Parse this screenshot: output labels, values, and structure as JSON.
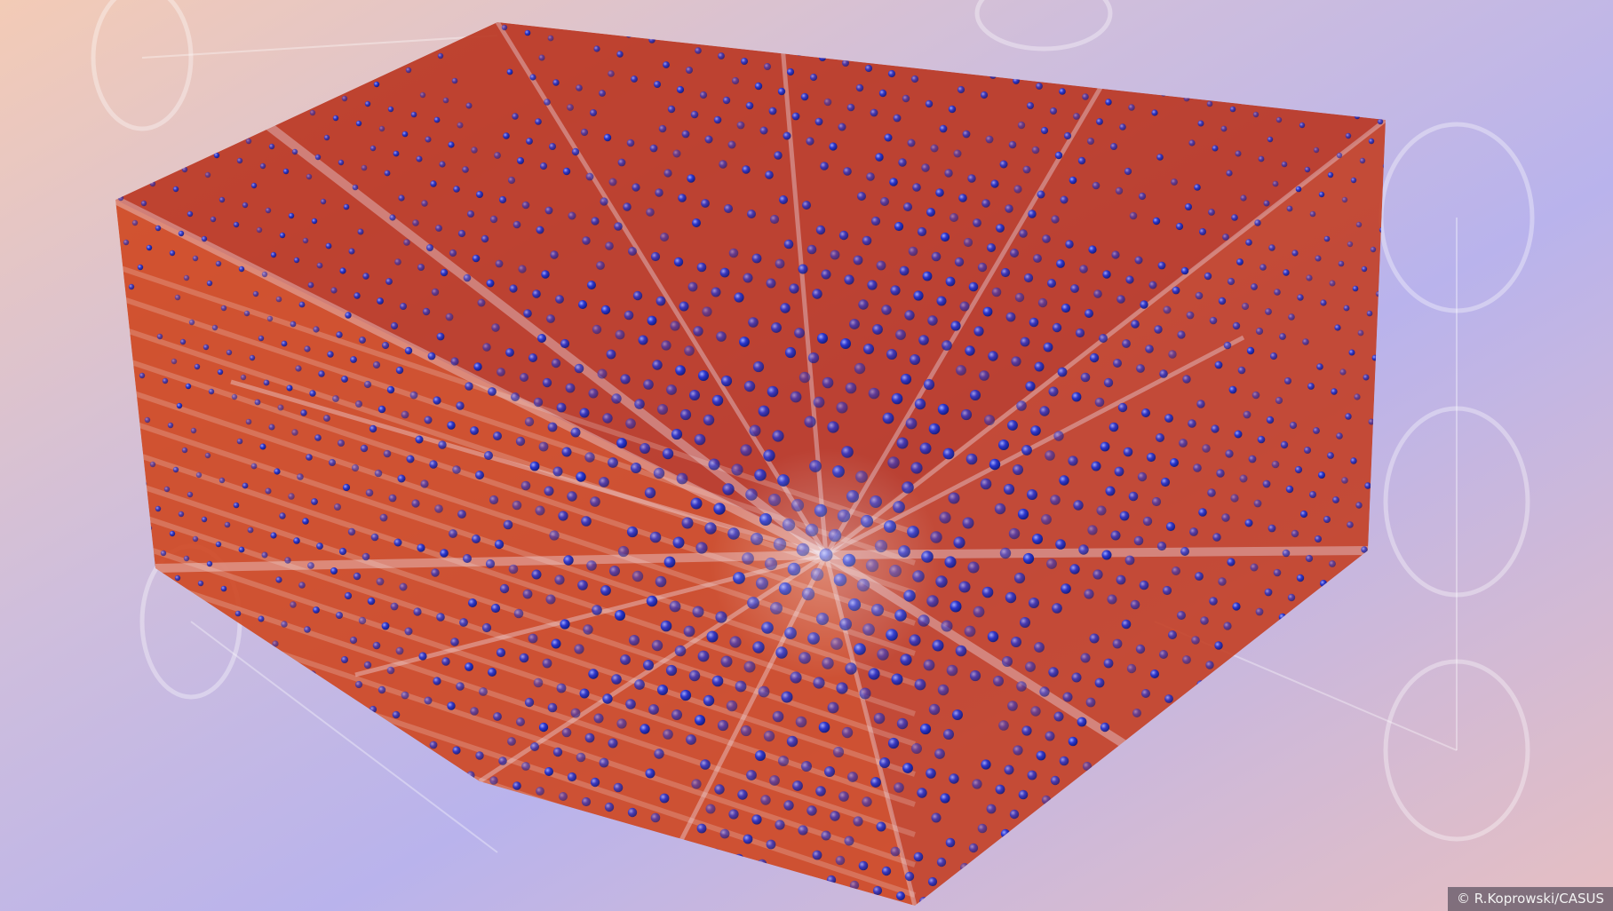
{
  "image": {
    "subject": "crystal-lattice-visualization",
    "colors": {
      "background_a": "#f2c9b8",
      "background_b": "#bdb5ea",
      "atom_blue": "#2433c8",
      "density_red": "#e03a12",
      "highlight": "#f4f1ff"
    }
  },
  "credit": {
    "text": "© R.Koprowski/CASUS"
  }
}
